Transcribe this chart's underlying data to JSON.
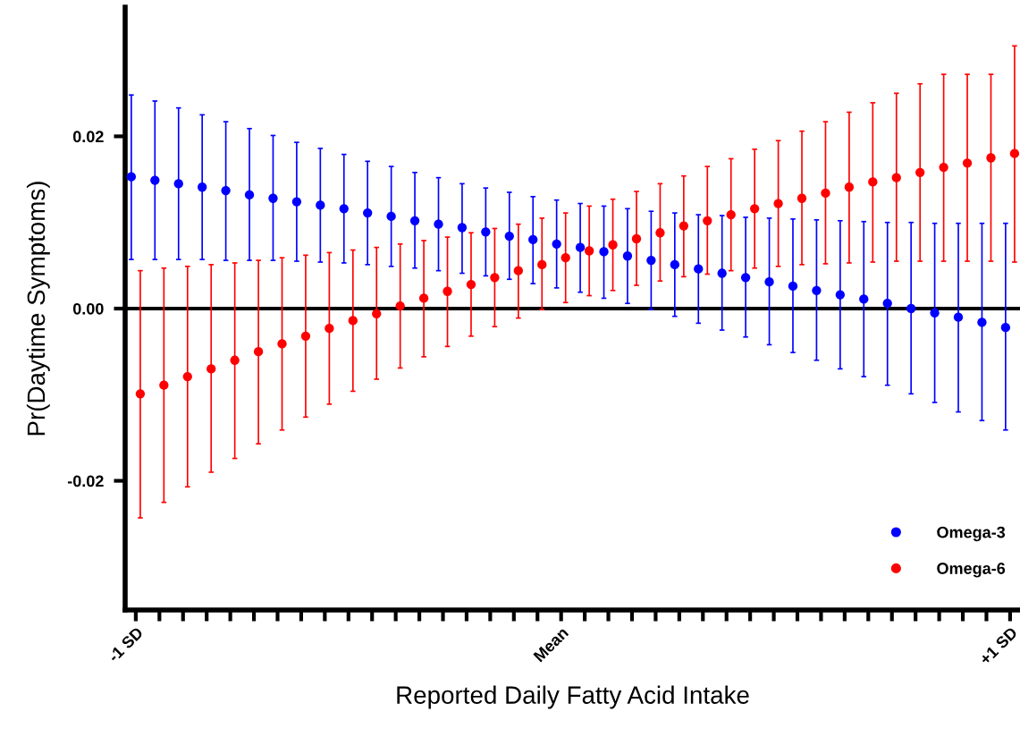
{
  "chart_data": {
    "type": "scatter",
    "xlabel": "Reported Daily Fatty Acid Intake",
    "ylabel": "Pr(Daytime Symptoms)",
    "categories": [
      "-1 SD",
      null,
      null,
      null,
      null,
      null,
      null,
      null,
      null,
      null,
      null,
      null,
      null,
      null,
      null,
      null,
      null,
      null,
      "Mean",
      null,
      null,
      null,
      null,
      null,
      null,
      null,
      null,
      null,
      null,
      null,
      null,
      null,
      null,
      null,
      null,
      null,
      null,
      "+1 SD"
    ],
    "ylim": [
      -0.035,
      0.035
    ],
    "yticks": [
      {
        "value": -0.02,
        "label": "-0.02"
      },
      {
        "value": 0,
        "label": "0.00"
      },
      {
        "value": 0.02,
        "label": "0.02"
      }
    ],
    "grid": false,
    "legend": "bottom right",
    "marker": "circle",
    "ref_lines": [
      {
        "axis": "y",
        "value": 0,
        "color": "#000000"
      }
    ],
    "series": [
      {
        "name": "Omega-3",
        "color": "#0000ff",
        "values": [
          0.0153,
          0.0149,
          0.0145,
          0.0141,
          0.0137,
          0.0132,
          0.0128,
          0.0124,
          0.012,
          0.0116,
          0.0111,
          0.0107,
          0.0102,
          0.0098,
          0.0094,
          0.0089,
          0.0084,
          0.008,
          0.0075,
          0.0071,
          0.0066,
          0.0061,
          0.0056,
          0.0051,
          0.0046,
          0.0041,
          0.0036,
          0.0031,
          0.0026,
          0.0021,
          0.0016,
          0.0011,
          0.0006,
          0.0,
          -0.0005,
          -0.001,
          -0.0016,
          -0.0022
        ],
        "errors": [
          [
            0.0057,
            0.0248
          ],
          [
            0.0057,
            0.0241
          ],
          [
            0.0057,
            0.0233
          ],
          [
            0.0057,
            0.0225
          ],
          [
            0.0056,
            0.0217
          ],
          [
            0.0056,
            0.0209
          ],
          [
            0.0056,
            0.0201
          ],
          [
            0.0055,
            0.0193
          ],
          [
            0.0054,
            0.0186
          ],
          [
            0.0053,
            0.0179
          ],
          [
            0.0051,
            0.0171
          ],
          [
            0.0049,
            0.0165
          ],
          [
            0.0047,
            0.0158
          ],
          [
            0.0044,
            0.0152
          ],
          [
            0.0041,
            0.0145
          ],
          [
            0.0038,
            0.014
          ],
          [
            0.0034,
            0.0135
          ],
          [
            0.0029,
            0.013
          ],
          [
            0.0024,
            0.0126
          ],
          [
            0.0019,
            0.0122
          ],
          [
            0.0012,
            0.0119
          ],
          [
            0.0006,
            0.0116
          ],
          [
            -0.0001,
            0.0113
          ],
          [
            -0.0009,
            0.0111
          ],
          [
            -0.0017,
            0.0109
          ],
          [
            -0.0025,
            0.0108
          ],
          [
            -0.0033,
            0.0106
          ],
          [
            -0.0042,
            0.0105
          ],
          [
            -0.0051,
            0.0104
          ],
          [
            -0.006,
            0.0103
          ],
          [
            -0.007,
            0.0102
          ],
          [
            -0.0079,
            0.0101
          ],
          [
            -0.0089,
            0.01
          ],
          [
            -0.0099,
            0.01
          ],
          [
            -0.0109,
            0.0099
          ],
          [
            -0.012,
            0.0099
          ],
          [
            -0.013,
            0.0099
          ],
          [
            -0.0141,
            0.0099
          ]
        ]
      },
      {
        "name": "Omega-6",
        "color": "#ff0000",
        "values": [
          -0.0099,
          -0.0089,
          -0.0079,
          -0.007,
          -0.006,
          -0.005,
          -0.0041,
          -0.0032,
          -0.0023,
          -0.0014,
          -0.0006,
          0.0003,
          0.0012,
          0.002,
          0.0028,
          0.0036,
          0.0044,
          0.0051,
          0.0059,
          0.0067,
          0.0074,
          0.0081,
          0.0088,
          0.0096,
          0.0102,
          0.0109,
          0.0116,
          0.0122,
          0.0128,
          0.0134,
          0.0141,
          0.0147,
          0.0152,
          0.0158,
          0.0164,
          0.0169,
          0.0175,
          0.018
        ],
        "errors": [
          [
            -0.0243,
            0.0044
          ],
          [
            -0.0225,
            0.0047
          ],
          [
            -0.0207,
            0.0049
          ],
          [
            -0.019,
            0.0051
          ],
          [
            -0.0174,
            0.0053
          ],
          [
            -0.0157,
            0.0056
          ],
          [
            -0.0141,
            0.0059
          ],
          [
            -0.0126,
            0.0062
          ],
          [
            -0.0111,
            0.0065
          ],
          [
            -0.0096,
            0.0068
          ],
          [
            -0.0082,
            0.0071
          ],
          [
            -0.0069,
            0.0075
          ],
          [
            -0.0056,
            0.0079
          ],
          [
            -0.0044,
            0.0083
          ],
          [
            -0.0032,
            0.0088
          ],
          [
            -0.0021,
            0.0093
          ],
          [
            -0.0011,
            0.0098
          ],
          [
            -0.0001,
            0.0105
          ],
          [
            0.0007,
            0.0111
          ],
          [
            0.0015,
            0.0119
          ],
          [
            0.0021,
            0.0127
          ],
          [
            0.0027,
            0.0136
          ],
          [
            0.0032,
            0.0145
          ],
          [
            0.0037,
            0.0154
          ],
          [
            0.004,
            0.0165
          ],
          [
            0.0044,
            0.0174
          ],
          [
            0.0047,
            0.0185
          ],
          [
            0.0049,
            0.0195
          ],
          [
            0.0051,
            0.0206
          ],
          [
            0.0052,
            0.0217
          ],
          [
            0.0053,
            0.0228
          ],
          [
            0.0054,
            0.0239
          ],
          [
            0.0055,
            0.025
          ],
          [
            0.0055,
            0.0261
          ],
          [
            0.0055,
            0.0272
          ],
          [
            0.0055,
            0.0272
          ],
          [
            0.0055,
            0.0272
          ],
          [
            0.0054,
            0.0305
          ]
        ]
      }
    ]
  }
}
